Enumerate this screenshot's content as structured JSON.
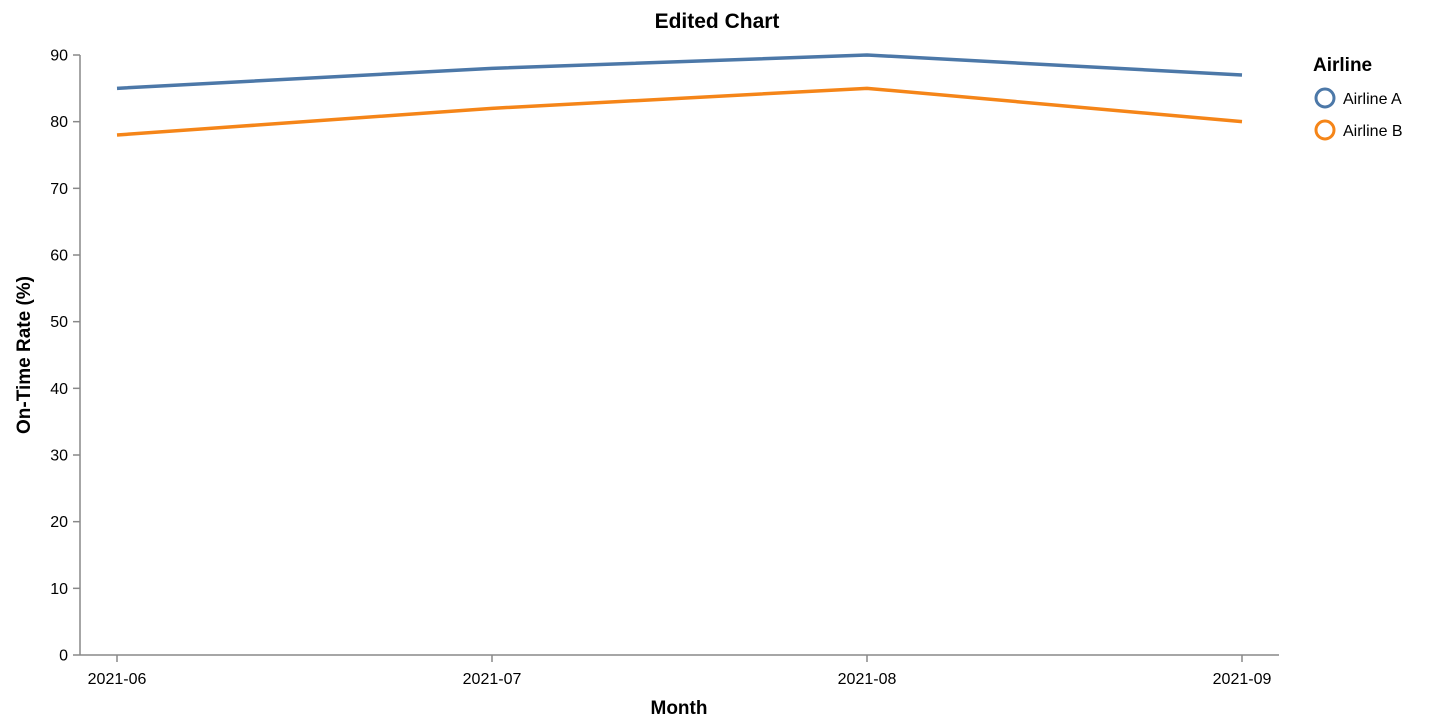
{
  "chart_data": {
    "type": "line",
    "title": "Edited Chart",
    "xlabel": "Month",
    "ylabel": "On-Time Rate (%)",
    "categories": [
      "2021-06",
      "2021-07",
      "2021-08",
      "2021-09"
    ],
    "ylim": [
      0,
      90
    ],
    "yticks": [
      0,
      10,
      20,
      30,
      40,
      50,
      60,
      70,
      80,
      90
    ],
    "grid": false,
    "legend": {
      "title": "Airline",
      "placement": "top-right"
    },
    "series": [
      {
        "name": "Airline A",
        "values": [
          85,
          88,
          90,
          87
        ],
        "color": "#4c78a8"
      },
      {
        "name": "Airline B",
        "values": [
          78,
          82,
          85,
          80
        ],
        "color": "#f58518"
      }
    ]
  }
}
